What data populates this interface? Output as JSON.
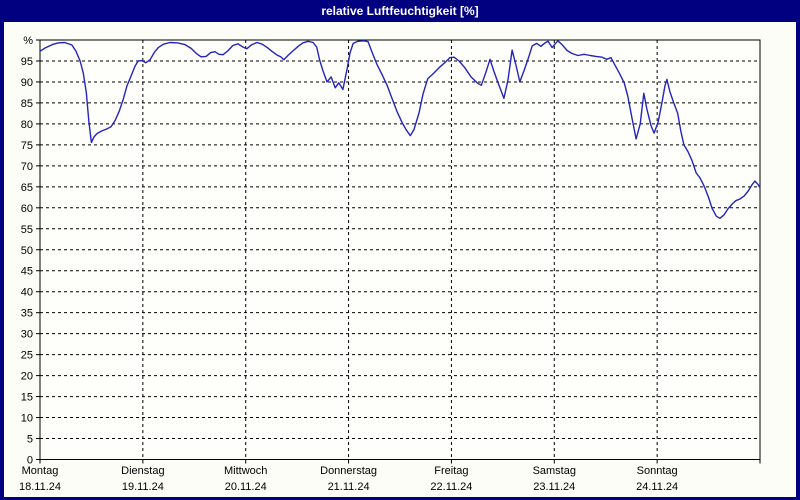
{
  "window": {
    "title": "relative Luftfeuchtigkeit [%]"
  },
  "colors": {
    "chrome": "#000080",
    "titlebar_text": "#ffffff",
    "chart_background": "#fcfdf6",
    "plot_background": "#fefefb",
    "grid": "#000000",
    "axis": "#000000",
    "label_text": "#000000",
    "line": "#2424bb"
  },
  "chart_data": {
    "type": "line",
    "title": "relative Luftfeuchtigkeit [%]",
    "ylabel": "%",
    "ylim": [
      0,
      100
    ],
    "xlim_days": [
      0,
      7
    ],
    "grid": "dashed, horizontal every 5%, vertical at each day boundary",
    "legend": "none",
    "y_ticks": [
      {
        "v": 100,
        "label": "%"
      },
      {
        "v": 95,
        "label": "95"
      },
      {
        "v": 90,
        "label": "90"
      },
      {
        "v": 85,
        "label": "85"
      },
      {
        "v": 80,
        "label": "80"
      },
      {
        "v": 75,
        "label": "75"
      },
      {
        "v": 70,
        "label": "70"
      },
      {
        "v": 65,
        "label": "65"
      },
      {
        "v": 60,
        "label": "60"
      },
      {
        "v": 55,
        "label": "55"
      },
      {
        "v": 50,
        "label": "50"
      },
      {
        "v": 45,
        "label": "45"
      },
      {
        "v": 40,
        "label": "40"
      },
      {
        "v": 35,
        "label": "35"
      },
      {
        "v": 30,
        "label": "30"
      },
      {
        "v": 25,
        "label": "25"
      },
      {
        "v": 20,
        "label": "20"
      },
      {
        "v": 15,
        "label": "15"
      },
      {
        "v": 10,
        "label": "10"
      },
      {
        "v": 5,
        "label": "5"
      },
      {
        "v": 0,
        "label": "0"
      }
    ],
    "x_days": [
      {
        "name": "Montag",
        "date": "18.11.24"
      },
      {
        "name": "Dienstag",
        "date": "19.11.24"
      },
      {
        "name": "Mittwoch",
        "date": "20.11.24"
      },
      {
        "name": "Donnerstag",
        "date": "21.11.24"
      },
      {
        "name": "Freitag",
        "date": "22.11.24"
      },
      {
        "name": "Samstag",
        "date": "23.11.24"
      },
      {
        "name": "Sonntag",
        "date": "24.11.24"
      }
    ],
    "series": [
      {
        "name": "relative Luftfeuchtigkeit",
        "unit": "%",
        "color": "#2424bb",
        "points": [
          [
            0.0,
            97.3
          ],
          [
            0.05,
            98.1
          ],
          [
            0.12,
            98.9
          ],
          [
            0.175,
            99.3
          ],
          [
            0.24,
            99.4
          ],
          [
            0.31,
            98.8
          ],
          [
            0.35,
            97.3
          ],
          [
            0.39,
            95.0
          ],
          [
            0.42,
            92.2
          ],
          [
            0.45,
            87.5
          ],
          [
            0.475,
            80.5
          ],
          [
            0.5,
            75.6
          ],
          [
            0.525,
            76.9
          ],
          [
            0.555,
            77.7
          ],
          [
            0.6,
            78.3
          ],
          [
            0.65,
            78.8
          ],
          [
            0.69,
            79.3
          ],
          [
            0.73,
            80.8
          ],
          [
            0.77,
            83.0
          ],
          [
            0.81,
            85.9
          ],
          [
            0.845,
            89.0
          ],
          [
            0.885,
            91.4
          ],
          [
            0.925,
            93.8
          ],
          [
            0.955,
            95.0
          ],
          [
            0.99,
            95.1
          ],
          [
            1.03,
            94.6
          ],
          [
            1.07,
            95.3
          ],
          [
            1.11,
            97.0
          ],
          [
            1.15,
            98.2
          ],
          [
            1.2,
            99.0
          ],
          [
            1.265,
            99.4
          ],
          [
            1.34,
            99.3
          ],
          [
            1.41,
            98.9
          ],
          [
            1.47,
            98.0
          ],
          [
            1.52,
            96.8
          ],
          [
            1.565,
            96.0
          ],
          [
            1.615,
            96.1
          ],
          [
            1.66,
            97.0
          ],
          [
            1.7,
            97.2
          ],
          [
            1.74,
            96.6
          ],
          [
            1.78,
            96.5
          ],
          [
            1.83,
            97.5
          ],
          [
            1.875,
            98.7
          ],
          [
            1.925,
            99.1
          ],
          [
            1.975,
            98.3
          ],
          [
            2.01,
            97.9
          ],
          [
            2.06,
            98.9
          ],
          [
            2.11,
            99.4
          ],
          [
            2.16,
            99.0
          ],
          [
            2.21,
            98.2
          ],
          [
            2.255,
            97.3
          ],
          [
            2.305,
            96.4
          ],
          [
            2.34,
            96.0
          ],
          [
            2.37,
            95.3
          ],
          [
            2.41,
            96.3
          ],
          [
            2.46,
            97.4
          ],
          [
            2.51,
            98.5
          ],
          [
            2.555,
            99.3
          ],
          [
            2.605,
            99.7
          ],
          [
            2.655,
            99.4
          ],
          [
            2.69,
            98.3
          ],
          [
            2.72,
            95.1
          ],
          [
            2.75,
            92.7
          ],
          [
            2.79,
            90.0
          ],
          [
            2.83,
            91.2
          ],
          [
            2.87,
            88.6
          ],
          [
            2.905,
            89.8
          ],
          [
            2.945,
            88.2
          ],
          [
            2.985,
            93.0
          ],
          [
            3.015,
            97.0
          ],
          [
            3.045,
            99.2
          ],
          [
            3.09,
            99.7
          ],
          [
            3.15,
            99.8
          ],
          [
            3.19,
            99.6
          ],
          [
            3.23,
            97.0
          ],
          [
            3.275,
            94.2
          ],
          [
            3.325,
            91.8
          ],
          [
            3.375,
            89.2
          ],
          [
            3.42,
            86.2
          ],
          [
            3.47,
            83.0
          ],
          [
            3.52,
            80.3
          ],
          [
            3.56,
            78.6
          ],
          [
            3.6,
            77.2
          ],
          [
            3.635,
            78.6
          ],
          [
            3.685,
            82.6
          ],
          [
            3.725,
            87.2
          ],
          [
            3.77,
            90.8
          ],
          [
            3.82,
            91.9
          ],
          [
            3.88,
            93.4
          ],
          [
            3.94,
            94.7
          ],
          [
            3.985,
            95.8
          ],
          [
            4.025,
            95.9
          ],
          [
            4.075,
            95.0
          ],
          [
            4.13,
            93.4
          ],
          [
            4.19,
            91.2
          ],
          [
            4.25,
            89.8
          ],
          [
            4.29,
            89.2
          ],
          [
            4.335,
            92.3
          ],
          [
            4.375,
            95.4
          ],
          [
            4.415,
            92.4
          ],
          [
            4.46,
            89.4
          ],
          [
            4.51,
            86.1
          ],
          [
            4.55,
            90.5
          ],
          [
            4.59,
            97.6
          ],
          [
            4.63,
            93.8
          ],
          [
            4.665,
            90.0
          ],
          [
            4.705,
            92.6
          ],
          [
            4.745,
            95.5
          ],
          [
            4.785,
            98.6
          ],
          [
            4.83,
            99.2
          ],
          [
            4.87,
            98.5
          ],
          [
            4.91,
            99.3
          ],
          [
            4.94,
            99.7
          ],
          [
            4.98,
            98.2
          ],
          [
            5.005,
            99.0
          ],
          [
            5.035,
            99.8
          ],
          [
            5.075,
            98.9
          ],
          [
            5.125,
            97.5
          ],
          [
            5.17,
            96.8
          ],
          [
            5.23,
            96.3
          ],
          [
            5.29,
            96.6
          ],
          [
            5.35,
            96.3
          ],
          [
            5.405,
            96.1
          ],
          [
            5.465,
            95.9
          ],
          [
            5.51,
            95.4
          ],
          [
            5.55,
            95.8
          ],
          [
            5.59,
            94.0
          ],
          [
            5.63,
            92.2
          ],
          [
            5.68,
            89.8
          ],
          [
            5.715,
            86.6
          ],
          [
            5.755,
            81.5
          ],
          [
            5.795,
            76.4
          ],
          [
            5.835,
            80.0
          ],
          [
            5.87,
            87.3
          ],
          [
            5.9,
            83.5
          ],
          [
            5.94,
            79.6
          ],
          [
            5.97,
            77.8
          ],
          [
            6.01,
            80.5
          ],
          [
            6.05,
            85.5
          ],
          [
            6.075,
            89.0
          ],
          [
            6.095,
            90.6
          ],
          [
            6.125,
            87.6
          ],
          [
            6.165,
            84.8
          ],
          [
            6.2,
            82.5
          ],
          [
            6.23,
            78.3
          ],
          [
            6.26,
            75.0
          ],
          [
            6.3,
            73.4
          ],
          [
            6.34,
            71.2
          ],
          [
            6.38,
            68.3
          ],
          [
            6.415,
            67.2
          ],
          [
            6.455,
            65.3
          ],
          [
            6.495,
            62.8
          ],
          [
            6.535,
            59.8
          ],
          [
            6.575,
            58.0
          ],
          [
            6.61,
            57.5
          ],
          [
            6.65,
            58.3
          ],
          [
            6.69,
            59.8
          ],
          [
            6.73,
            60.9
          ],
          [
            6.765,
            61.7
          ],
          [
            6.805,
            62.1
          ],
          [
            6.845,
            62.8
          ],
          [
            6.885,
            64.0
          ],
          [
            6.92,
            65.4
          ],
          [
            6.95,
            66.4
          ],
          [
            6.98,
            65.6
          ],
          [
            7.0,
            64.8
          ]
        ]
      }
    ]
  }
}
